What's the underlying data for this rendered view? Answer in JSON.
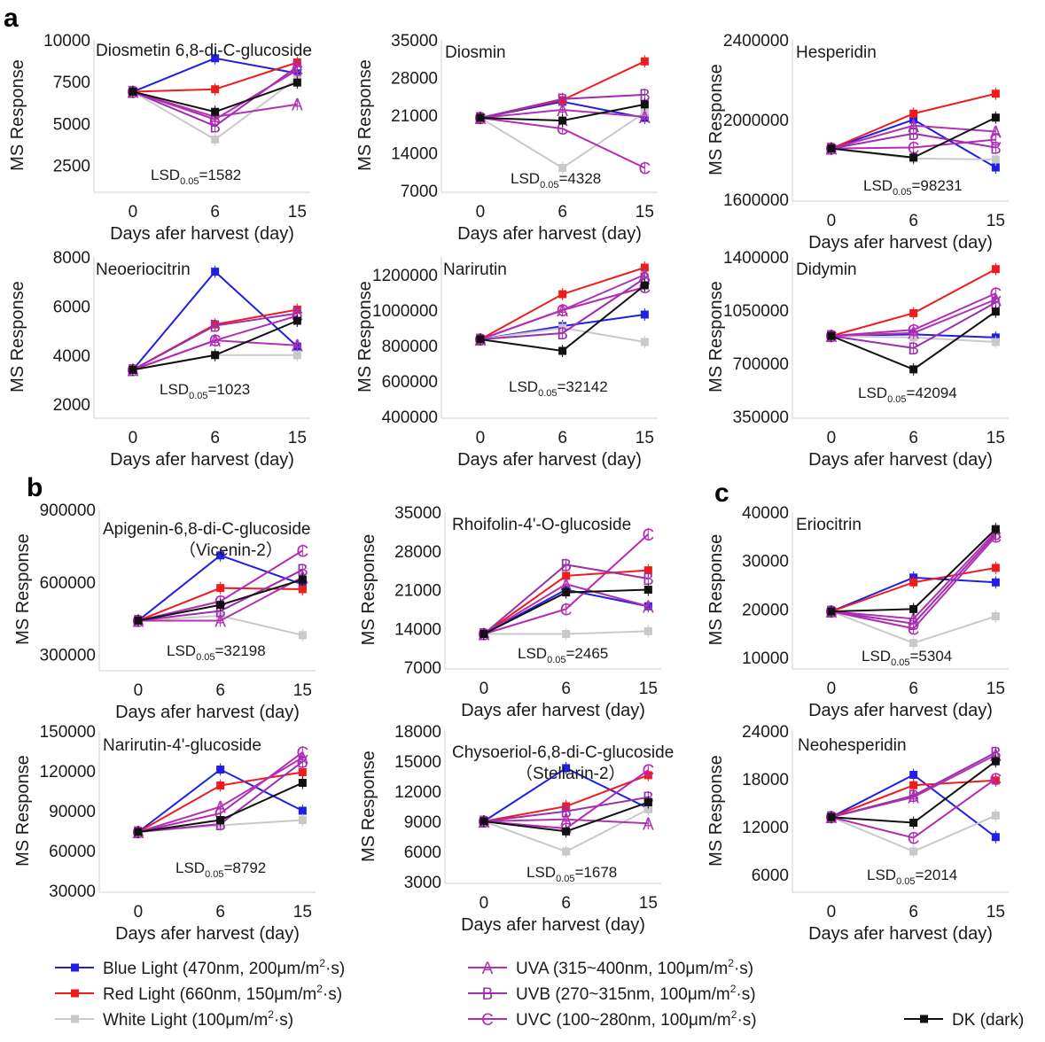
{
  "panel_letters": [
    "a",
    "b",
    "c"
  ],
  "legend": [
    {
      "key": "blue",
      "prefix": "Blue Light (470nm, 200μm/m",
      "sup": "2",
      "suffix": "·s)",
      "color": "#1f1fe6",
      "marker": "square"
    },
    {
      "key": "red",
      "prefix": "Red Light (660nm, 150μm/m",
      "sup": "2",
      "suffix": "·s)",
      "color": "#f01c1c",
      "marker": "square"
    },
    {
      "key": "white",
      "prefix": "White Light (100μm/m",
      "sup": "2",
      "suffix": "·s)",
      "color": "#c9c9c9",
      "marker": "square"
    },
    {
      "key": "uva",
      "prefix": "UVA (315~400nm, 100μm/m",
      "sup": "2",
      "suffix": "·s)",
      "color": "#b233b2",
      "marker": "A"
    },
    {
      "key": "uvb",
      "prefix": "UVB (270~315nm, 100μm/m",
      "sup": "2",
      "suffix": "·s)",
      "color": "#9b2fae",
      "marker": "B"
    },
    {
      "key": "uvc",
      "prefix": "UVC (100~280nm, 100μm/m",
      "sup": "2",
      "suffix": "·s)",
      "color": "#b52ab5",
      "marker": "C"
    },
    {
      "key": "dk",
      "prefix": "DK (dark)",
      "sup": "",
      "suffix": "",
      "color": "#111111",
      "marker": "square"
    }
  ],
  "chart_data": [
    {
      "type": "line",
      "title": "Diosmetin 6,8-di-C-glucoside",
      "xlabel": "Days afer harvest (day)",
      "ylabel": "MS Response",
      "categories": [
        "0",
        "6",
        "15"
      ],
      "yticks": [
        "2500",
        "5000",
        "7500",
        "10000"
      ],
      "ylim": [
        1000,
        10000
      ],
      "lsd_prefix": "LSD",
      "lsd_sub": "0.05",
      "lsd_value": "=1582",
      "series": [
        {
          "key": "blue",
          "values": [
            6900,
            8900,
            8000
          ]
        },
        {
          "key": "red",
          "values": [
            6900,
            7050,
            8650
          ]
        },
        {
          "key": "white",
          "values": [
            6900,
            4050,
            7700
          ]
        },
        {
          "key": "uva",
          "values": [
            6900,
            5400,
            6150
          ]
        },
        {
          "key": "uvb",
          "values": [
            6900,
            4850,
            8400
          ]
        },
        {
          "key": "uvc",
          "values": [
            6900,
            5250,
            8200
          ]
        },
        {
          "key": "dk",
          "values": [
            6900,
            5700,
            7450
          ]
        }
      ]
    },
    {
      "type": "line",
      "title": "Diosmin",
      "xlabel": "Days afer harvest (day)",
      "ylabel": "MS Response",
      "categories": [
        "0",
        "6",
        "15"
      ],
      "yticks": [
        "7000",
        "14000",
        "21000",
        "28000",
        "35000"
      ],
      "ylim": [
        7000,
        35000
      ],
      "lsd_prefix": "LSD",
      "lsd_sub": "0.05",
      "lsd_value": "=4328",
      "series": [
        {
          "key": "blue",
          "values": [
            20500,
            23500,
            20500
          ]
        },
        {
          "key": "red",
          "values": [
            20500,
            23800,
            31000
          ]
        },
        {
          "key": "white",
          "values": [
            20500,
            11200,
            21500
          ]
        },
        {
          "key": "uva",
          "values": [
            20500,
            22000,
            20700
          ]
        },
        {
          "key": "uvb",
          "values": [
            20500,
            24000,
            24800
          ]
        },
        {
          "key": "uvc",
          "values": [
            20500,
            18500,
            11200
          ]
        },
        {
          "key": "dk",
          "values": [
            20500,
            20000,
            23000
          ]
        }
      ]
    },
    {
      "type": "line",
      "title": "Hesperidin",
      "xlabel": "Days afer harvest (day)",
      "ylabel": "MS Response",
      "categories": [
        "0",
        "6",
        "15"
      ],
      "yticks": [
        "1600000",
        "2000000",
        "2400000"
      ],
      "ylim": [
        1600000,
        2400000
      ],
      "lsd_prefix": "LSD",
      "lsd_sub": "0.05",
      "lsd_value": "=98231",
      "series": [
        {
          "key": "blue",
          "values": [
            1855000,
            2000000,
            1760000
          ]
        },
        {
          "key": "red",
          "values": [
            1855000,
            2030000,
            2130000
          ]
        },
        {
          "key": "white",
          "values": [
            1855000,
            1805000,
            1800000
          ]
        },
        {
          "key": "uva",
          "values": [
            1855000,
            1970000,
            1940000
          ]
        },
        {
          "key": "uvb",
          "values": [
            1855000,
            1930000,
            1860000
          ]
        },
        {
          "key": "uvc",
          "values": [
            1855000,
            1860000,
            1900000
          ]
        },
        {
          "key": "dk",
          "values": [
            1855000,
            1810000,
            2010000
          ]
        }
      ]
    },
    {
      "type": "line",
      "title": "Neoeriocitrin",
      "xlabel": "Days afer harvest (day)",
      "ylabel": "MS Response",
      "categories": [
        "0",
        "6",
        "15"
      ],
      "yticks": [
        "2000",
        "4000",
        "6000",
        "8000"
      ],
      "ylim": [
        1500,
        8000
      ],
      "lsd_prefix": "LSD",
      "lsd_sub": "0.05",
      "lsd_value": "=1023",
      "series": [
        {
          "key": "blue",
          "values": [
            3400,
            7400,
            4350
          ]
        },
        {
          "key": "red",
          "values": [
            3400,
            5250,
            5850
          ]
        },
        {
          "key": "white",
          "values": [
            3400,
            4000,
            4000
          ]
        },
        {
          "key": "uva",
          "values": [
            3400,
            4600,
            4400
          ]
        },
        {
          "key": "uvb",
          "values": [
            3400,
            5200,
            5700
          ]
        },
        {
          "key": "uvc",
          "values": [
            3400,
            4600,
            5600
          ]
        },
        {
          "key": "dk",
          "values": [
            3400,
            4000,
            5400
          ]
        }
      ]
    },
    {
      "type": "line",
      "title": "Narirutin",
      "xlabel": "Days afer harvest (day)",
      "ylabel": "MS Response",
      "categories": [
        "0",
        "6",
        "15"
      ],
      "yticks": [
        "400000",
        "600000",
        "800000",
        "1000000",
        "1200000"
      ],
      "ylim": [
        400000,
        1300000
      ],
      "lsd_prefix": "LSD",
      "lsd_sub": "0.05",
      "lsd_value": "=32142",
      "series": [
        {
          "key": "blue",
          "values": [
            835000,
            910000,
            975000
          ]
        },
        {
          "key": "red",
          "values": [
            835000,
            1090000,
            1240000
          ]
        },
        {
          "key": "white",
          "values": [
            835000,
            900000,
            820000
          ]
        },
        {
          "key": "uva",
          "values": [
            835000,
            1000000,
            1200000
          ]
        },
        {
          "key": "uvb",
          "values": [
            835000,
            870000,
            1180000
          ]
        },
        {
          "key": "uvc",
          "values": [
            835000,
            1000000,
            1130000
          ]
        },
        {
          "key": "dk",
          "values": [
            835000,
            770000,
            1140000
          ]
        }
      ]
    },
    {
      "type": "line",
      "title": "Didymin",
      "xlabel": "Days afer harvest (day)",
      "ylabel": "MS Response",
      "categories": [
        "0",
        "6",
        "15"
      ],
      "yticks": [
        "350000",
        "700000",
        "1050000",
        "1400000"
      ],
      "ylim": [
        350000,
        1400000
      ],
      "lsd_prefix": "LSD",
      "lsd_sub": "0.05",
      "lsd_value": "=42094",
      "series": [
        {
          "key": "blue",
          "values": [
            880000,
            890000,
            870000
          ]
        },
        {
          "key": "red",
          "values": [
            880000,
            1030000,
            1320000
          ]
        },
        {
          "key": "white",
          "values": [
            880000,
            870000,
            840000
          ]
        },
        {
          "key": "uva",
          "values": [
            880000,
            900000,
            1120000
          ]
        },
        {
          "key": "uvb",
          "values": [
            880000,
            800000,
            1100000
          ]
        },
        {
          "key": "uvc",
          "values": [
            880000,
            920000,
            1160000
          ]
        },
        {
          "key": "dk",
          "values": [
            880000,
            660000,
            1040000
          ]
        }
      ]
    },
    {
      "type": "line",
      "title": "Apigenin-6,8-di-C-glucoside",
      "subtitle": "（Vicenin-2）",
      "xlabel": "Days afer harvest (day)",
      "ylabel": "MS Response",
      "categories": [
        "0",
        "6",
        "15"
      ],
      "yticks": [
        "300000",
        "600000",
        "900000"
      ],
      "ylim": [
        240000,
        900000
      ],
      "lsd_prefix": "LSD",
      "lsd_sub": "0.05",
      "lsd_value": "=32198",
      "series": [
        {
          "key": "blue",
          "values": [
            440000,
            710000,
            590000
          ]
        },
        {
          "key": "red",
          "values": [
            440000,
            575000,
            570000
          ]
        },
        {
          "key": "white",
          "values": [
            440000,
            460000,
            380000
          ]
        },
        {
          "key": "uva",
          "values": [
            440000,
            440000,
            620000
          ]
        },
        {
          "key": "uvb",
          "values": [
            440000,
            480000,
            650000
          ]
        },
        {
          "key": "uvc",
          "values": [
            440000,
            520000,
            730000
          ]
        },
        {
          "key": "dk",
          "values": [
            440000,
            505000,
            610000
          ]
        }
      ]
    },
    {
      "type": "line",
      "title": "Rhoifolin-4'-O-glucoside",
      "xlabel": "Days afer harvest (day)",
      "ylabel": "MS Response",
      "categories": [
        "0",
        "6",
        "15"
      ],
      "yticks": [
        "7000",
        "14000",
        "21000",
        "28000",
        "35000"
      ],
      "ylim": [
        7000,
        35000
      ],
      "lsd_prefix": "LSD",
      "lsd_sub": "0.05",
      "lsd_value": "=2465",
      "series": [
        {
          "key": "blue",
          "values": [
            13000,
            21000,
            18000
          ]
        },
        {
          "key": "red",
          "values": [
            13000,
            23500,
            24500
          ]
        },
        {
          "key": "white",
          "values": [
            13000,
            13000,
            13500
          ]
        },
        {
          "key": "uva",
          "values": [
            13000,
            22000,
            18000
          ]
        },
        {
          "key": "uvb",
          "values": [
            13000,
            25500,
            23000
          ]
        },
        {
          "key": "uvc",
          "values": [
            13000,
            17500,
            31000
          ]
        },
        {
          "key": "dk",
          "values": [
            13000,
            20500,
            21000
          ]
        }
      ]
    },
    {
      "type": "line",
      "title": "Eriocitrin",
      "xlabel": "Days afer harvest (day)",
      "ylabel": "MS Response",
      "categories": [
        "0",
        "6",
        "15"
      ],
      "yticks": [
        "10000",
        "20000",
        "30000",
        "40000"
      ],
      "ylim": [
        8000,
        40000
      ],
      "lsd_prefix": "LSD",
      "lsd_sub": "0.05",
      "lsd_value": "=5304",
      "series": [
        {
          "key": "blue",
          "values": [
            19500,
            26500,
            25500
          ]
        },
        {
          "key": "red",
          "values": [
            19500,
            25500,
            28500
          ]
        },
        {
          "key": "white",
          "values": [
            19500,
            13000,
            18500
          ]
        },
        {
          "key": "uva",
          "values": [
            19500,
            18000,
            36000
          ]
        },
        {
          "key": "uvb",
          "values": [
            19500,
            17000,
            35500
          ]
        },
        {
          "key": "uvc",
          "values": [
            19500,
            16000,
            35000
          ]
        },
        {
          "key": "dk",
          "values": [
            19500,
            20000,
            36500
          ]
        }
      ]
    },
    {
      "type": "line",
      "title": "Narirutin-4'-glucoside",
      "xlabel": "Days afer harvest (day)",
      "ylabel": "MS Response",
      "categories": [
        "0",
        "6",
        "15"
      ],
      "yticks": [
        "30000",
        "60000",
        "90000",
        "120000",
        "150000"
      ],
      "ylim": [
        30000,
        150000
      ],
      "lsd_prefix": "LSD",
      "lsd_sub": "0.05",
      "lsd_value": "=8792",
      "series": [
        {
          "key": "blue",
          "values": [
            74000,
            121000,
            90000
          ]
        },
        {
          "key": "red",
          "values": [
            74000,
            109000,
            119000
          ]
        },
        {
          "key": "white",
          "values": [
            74000,
            79000,
            83000
          ]
        },
        {
          "key": "uva",
          "values": [
            74000,
            93000,
            130000
          ]
        },
        {
          "key": "uvb",
          "values": [
            74000,
            80000,
            127000
          ]
        },
        {
          "key": "uvc",
          "values": [
            74000,
            88000,
            134000
          ]
        },
        {
          "key": "dk",
          "values": [
            74000,
            83000,
            111000
          ]
        }
      ]
    },
    {
      "type": "line",
      "title": "Chysoeriol-6,8-di-C-glucoside",
      "subtitle": "（Stellarin-2）",
      "xlabel": "Days afer harvest (day)",
      "ylabel": "MS Response",
      "categories": [
        "0",
        "6",
        "15"
      ],
      "yticks": [
        "3000",
        "6000",
        "9000",
        "12000",
        "15000",
        "18000"
      ],
      "ylim": [
        3000,
        18000
      ],
      "lsd_prefix": "LSD",
      "lsd_sub": "0.05",
      "lsd_value": "=1678",
      "series": [
        {
          "key": "blue",
          "values": [
            9000,
            14300,
            10300
          ]
        },
        {
          "key": "red",
          "values": [
            9000,
            10500,
            13600
          ]
        },
        {
          "key": "white",
          "values": [
            9000,
            6000,
            10200
          ]
        },
        {
          "key": "uva",
          "values": [
            9000,
            9200,
            8800
          ]
        },
        {
          "key": "uvb",
          "values": [
            9000,
            10000,
            11400
          ]
        },
        {
          "key": "uvc",
          "values": [
            9000,
            8300,
            14100
          ]
        },
        {
          "key": "dk",
          "values": [
            9000,
            8000,
            10900
          ]
        }
      ]
    },
    {
      "type": "line",
      "title": "Neohesperidin",
      "xlabel": "Days afer harvest (day)",
      "ylabel": "MS Response",
      "categories": [
        "0",
        "6",
        "15"
      ],
      "yticks": [
        "6000",
        "12000",
        "18000",
        "24000"
      ],
      "ylim": [
        4000,
        24000
      ],
      "lsd_prefix": "LSD",
      "lsd_sub": "0.05",
      "lsd_value": "=2014",
      "series": [
        {
          "key": "blue",
          "values": [
            13200,
            18500,
            10700
          ]
        },
        {
          "key": "red",
          "values": [
            13200,
            17200,
            17800
          ]
        },
        {
          "key": "white",
          "values": [
            13200,
            8900,
            13400
          ]
        },
        {
          "key": "uva",
          "values": [
            13200,
            15700,
            21000
          ]
        },
        {
          "key": "uvb",
          "values": [
            13200,
            15900,
            21300
          ]
        },
        {
          "key": "uvc",
          "values": [
            13200,
            10600,
            18000
          ]
        },
        {
          "key": "dk",
          "values": [
            13200,
            12500,
            20200
          ]
        }
      ]
    }
  ]
}
